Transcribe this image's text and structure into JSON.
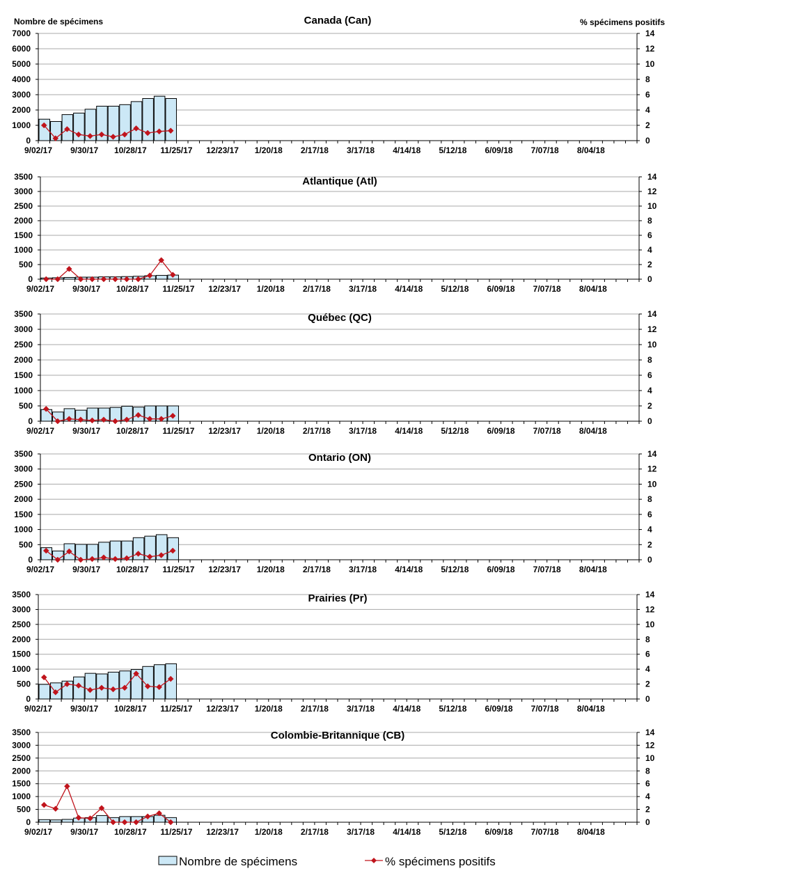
{
  "chart_data": [
    {
      "type": "bar",
      "title": "Canada (Can)",
      "ylabel": "Nombre de spécimens",
      "y2label": "% spécimens positifs",
      "ylim": [
        0,
        7000
      ],
      "yticks": [
        0,
        1000,
        2000,
        3000,
        4000,
        5000,
        6000,
        7000
      ],
      "y2lim": [
        0,
        14
      ],
      "y2ticks": [
        0,
        2,
        4,
        6,
        8,
        10,
        12,
        14
      ],
      "grid": true,
      "bars": [
        1400,
        1250,
        1700,
        1800,
        2050,
        2250,
        2250,
        2350,
        2550,
        2750,
        2900,
        2750
      ],
      "pct": [
        2.0,
        0.3,
        1.5,
        0.8,
        0.6,
        0.8,
        0.5,
        0.8,
        1.6,
        1.0,
        1.2,
        1.3
      ]
    },
    {
      "type": "bar",
      "title": "Atlantique (Atl)",
      "ylim": [
        0,
        3500
      ],
      "yticks": [
        0,
        500,
        1000,
        1500,
        2000,
        2500,
        3000,
        3500
      ],
      "y2lim": [
        0,
        14
      ],
      "y2ticks": [
        0,
        2,
        4,
        6,
        8,
        10,
        12,
        14
      ],
      "grid": true,
      "bars": [
        40,
        50,
        60,
        70,
        70,
        80,
        80,
        90,
        100,
        120,
        130,
        140
      ],
      "pct": [
        0.0,
        0.0,
        1.4,
        0.0,
        0.0,
        0.0,
        0.0,
        0.0,
        0.0,
        0.5,
        2.6,
        0.6
      ]
    },
    {
      "type": "bar",
      "title": "Québec (QC)",
      "ylim": [
        0,
        3500
      ],
      "yticks": [
        0,
        500,
        1000,
        1500,
        2000,
        2500,
        3000,
        3500
      ],
      "y2lim": [
        0,
        14
      ],
      "y2ticks": [
        0,
        2,
        4,
        6,
        8,
        10,
        12,
        14
      ],
      "grid": true,
      "bars": [
        380,
        300,
        410,
        360,
        430,
        430,
        450,
        490,
        460,
        500,
        500,
        500
      ],
      "pct": [
        1.6,
        0.0,
        0.3,
        0.2,
        0.1,
        0.2,
        0.0,
        0.2,
        0.8,
        0.3,
        0.3,
        0.7
      ]
    },
    {
      "type": "bar",
      "title": "Ontario (ON)",
      "ylim": [
        0,
        3500
      ],
      "yticks": [
        0,
        500,
        1000,
        1500,
        2000,
        2500,
        3000,
        3500
      ],
      "y2lim": [
        0,
        14
      ],
      "y2ticks": [
        0,
        2,
        4,
        6,
        8,
        10,
        12,
        14
      ],
      "grid": true,
      "bars": [
        400,
        290,
        530,
        510,
        510,
        580,
        620,
        620,
        730,
        780,
        830,
        730
      ],
      "pct": [
        1.2,
        0.0,
        1.1,
        0.0,
        0.1,
        0.3,
        0.1,
        0.2,
        0.8,
        0.4,
        0.6,
        1.2
      ]
    },
    {
      "type": "bar",
      "title": "Prairies (Pr)",
      "ylim": [
        0,
        3500
      ],
      "yticks": [
        0,
        500,
        1000,
        1500,
        2000,
        2500,
        3000,
        3500
      ],
      "y2lim": [
        0,
        14
      ],
      "y2ticks": [
        0,
        2,
        4,
        6,
        8,
        10,
        12,
        14
      ],
      "grid": true,
      "bars": [
        490,
        540,
        600,
        740,
        860,
        840,
        900,
        940,
        990,
        1090,
        1150,
        1180
      ],
      "pct": [
        2.9,
        0.9,
        2.0,
        1.8,
        1.2,
        1.5,
        1.3,
        1.5,
        3.4,
        1.7,
        1.6,
        2.7
      ]
    },
    {
      "type": "bar",
      "title": "Colombie-Britannique (CB)",
      "ylim": [
        0,
        3500
      ],
      "yticks": [
        0,
        500,
        1000,
        1500,
        2000,
        2500,
        3000,
        3500
      ],
      "y2lim": [
        0,
        14
      ],
      "y2ticks": [
        0,
        2,
        4,
        6,
        8,
        10,
        12,
        14
      ],
      "grid": true,
      "bars": [
        100,
        90,
        110,
        160,
        180,
        260,
        180,
        220,
        220,
        220,
        270,
        180
      ],
      "pct": [
        2.7,
        2.1,
        5.6,
        0.7,
        0.6,
        2.2,
        0.0,
        0.0,
        0.0,
        0.9,
        1.4,
        0.0
      ]
    }
  ],
  "x_tick_labels": [
    "9/02/17",
    "9/30/17",
    "10/28/17",
    "11/25/17",
    "12/23/17",
    "1/20/18",
    "2/17/18",
    "3/17/18",
    "4/14/18",
    "5/12/18",
    "6/09/18",
    "7/07/18",
    "8/04/18"
  ],
  "legend": {
    "placement": "bottom",
    "bars_label": "Nombre de spécimens",
    "line_label": "% spécimens positifs"
  },
  "colors": {
    "bar_fill": "#cce8f6",
    "bar_stroke": "#000000",
    "line": "#c0141c",
    "grid": "#a8a8a8"
  }
}
